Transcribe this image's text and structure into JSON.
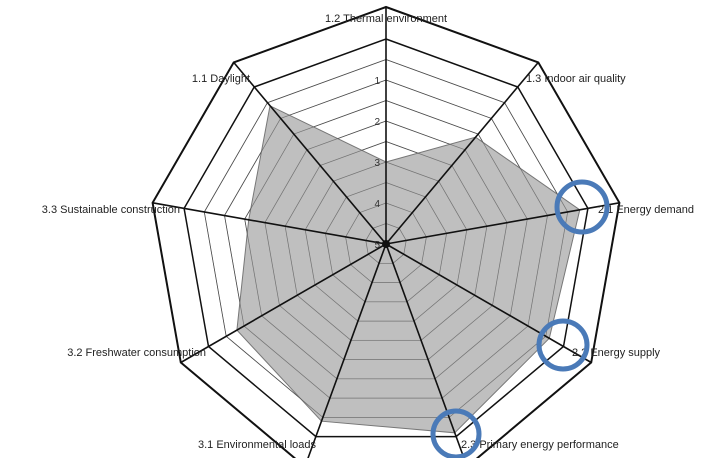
{
  "chart_data": {
    "type": "radar",
    "categories": [
      "1.2 Thermal environment",
      "1.3 Indoor air quality",
      "2.1 Energy demand",
      "2.2 Energy supply",
      "2.3 Primary energy performance",
      "3.1 Environmental loads",
      "3.2 Freshwater consumption",
      "3.3 Sustainable construction",
      "1.1 Daylight"
    ],
    "axis_ticks": [
      "1",
      "2",
      "3",
      "4",
      "5"
    ],
    "r_scale": {
      "center": 5,
      "outer": 0
    },
    "series": [
      {
        "values": [
          3,
          1.6,
          0.2,
          0.4,
          0.1,
          0.4,
          0.8,
          1.6,
          0.6
        ],
        "fill": "#b8b8b8",
        "stroke": "#777777"
      }
    ],
    "grid": true,
    "highlighted_axes": [
      "2.1 Energy demand",
      "2.2 Energy supply",
      "2.3 Primary energy performance"
    ],
    "highlight_color": "#4a7ab8"
  }
}
